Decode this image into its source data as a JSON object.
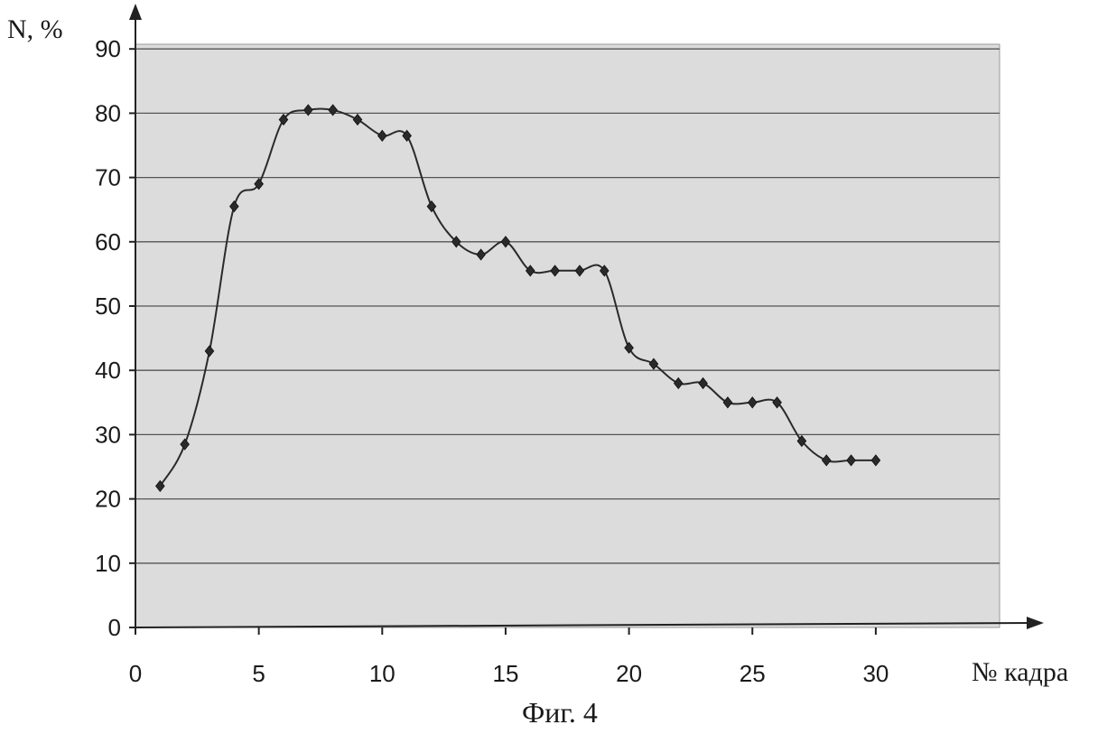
{
  "chart_data": {
    "type": "line",
    "ylabel": "N, %",
    "xlabel": "№ кадра",
    "caption": "Фиг. 4",
    "xlim": [
      0,
      35
    ],
    "ylim": [
      0,
      90
    ],
    "x_ticks": [
      0,
      5,
      10,
      15,
      20,
      25,
      30
    ],
    "y_ticks": [
      0,
      10,
      20,
      30,
      40,
      50,
      60,
      70,
      80,
      90
    ],
    "grid": true,
    "marker": "diamond",
    "smooth": true,
    "series": [
      {
        "x": [
          1,
          2,
          3,
          4,
          5,
          6,
          7,
          8,
          9,
          10,
          11,
          12,
          13,
          14,
          15,
          16,
          17,
          18,
          19,
          20,
          21,
          22,
          23,
          24,
          25,
          26,
          27,
          28,
          29,
          30
        ],
        "values": [
          22,
          28.5,
          43,
          65.5,
          69,
          79,
          80.5,
          80.5,
          79,
          76.5,
          76.5,
          65.5,
          60,
          58,
          60,
          55.5,
          55.5,
          55.5,
          55.5,
          43.5,
          41,
          38,
          38,
          35,
          35,
          35,
          29,
          26,
          26,
          26
        ]
      }
    ]
  },
  "colors": {
    "plot_background": "#dcdcdc",
    "line": "#2a2a2a",
    "gridlines": "#555555"
  }
}
